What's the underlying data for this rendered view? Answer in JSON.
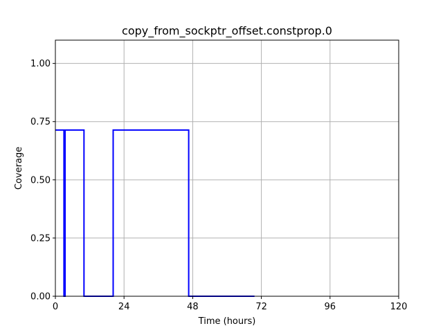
{
  "chart_data": {
    "type": "line",
    "title": "copy_from_sockptr_offset.constprop.0",
    "xlabel": "Time (hours)",
    "ylabel": "Coverage",
    "xlim": [
      0,
      120
    ],
    "ylim": [
      0,
      1.1
    ],
    "xticks": [
      0,
      24,
      48,
      72,
      96,
      120
    ],
    "xtick_labels": [
      "0",
      "24",
      "48",
      "72",
      "96",
      "120"
    ],
    "yticks": [
      0,
      0.25,
      0.5,
      0.75,
      1.0
    ],
    "ytick_labels": [
      "0.00",
      "0.25",
      "0.50",
      "0.75",
      "1.00"
    ],
    "grid": true,
    "legend": "none",
    "series": [
      {
        "color": "#0000ff",
        "style": "step",
        "x": [
          0,
          3.0,
          3.0,
          3.4,
          3.4,
          10.0,
          10.0,
          20.2,
          20.2,
          46.6,
          46.6,
          69.6
        ],
        "y": [
          0.714,
          0.714,
          0,
          0,
          0.714,
          0.714,
          0,
          0,
          0.714,
          0.714,
          0,
          0
        ]
      }
    ]
  }
}
